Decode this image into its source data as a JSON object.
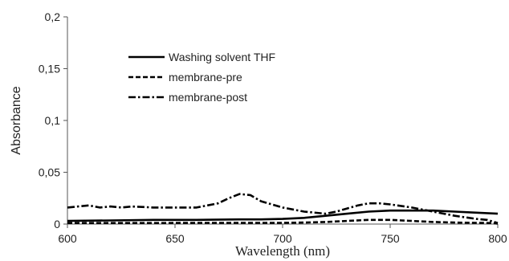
{
  "chart_data": {
    "type": "line",
    "title": "",
    "xlabel": "Wavelength  (nm)",
    "ylabel": "Absorbance",
    "xlim": [
      600,
      800
    ],
    "ylim": [
      0,
      0.2
    ],
    "xticks": [
      600,
      650,
      700,
      750,
      800
    ],
    "yticks": [
      0,
      0.05,
      0.1,
      0.15,
      0.2
    ],
    "xtick_labels": [
      "600",
      "650",
      "700",
      "750",
      "800"
    ],
    "ytick_labels": [
      "0",
      "0,05",
      "0,1",
      "0,15",
      "0,2"
    ],
    "grid": false,
    "legend_position": "upper-left",
    "series": [
      {
        "name": "Washing solvent THF",
        "style": "solid",
        "color": "#000000",
        "points": [
          [
            600,
            0.003
          ],
          [
            620,
            0.0035
          ],
          [
            640,
            0.004
          ],
          [
            660,
            0.004
          ],
          [
            680,
            0.0045
          ],
          [
            690,
            0.0045
          ],
          [
            700,
            0.005
          ],
          [
            710,
            0.006
          ],
          [
            720,
            0.008
          ],
          [
            730,
            0.01
          ],
          [
            740,
            0.012
          ],
          [
            750,
            0.013
          ],
          [
            760,
            0.013
          ],
          [
            770,
            0.013
          ],
          [
            780,
            0.012
          ],
          [
            790,
            0.011
          ],
          [
            800,
            0.01
          ]
        ]
      },
      {
        "name": "membrane-pre",
        "style": "dashed",
        "color": "#000000",
        "points": [
          [
            600,
            0.001
          ],
          [
            620,
            0.001
          ],
          [
            640,
            0.001
          ],
          [
            660,
            0.0012
          ],
          [
            680,
            0.0012
          ],
          [
            700,
            0.0012
          ],
          [
            710,
            0.0015
          ],
          [
            720,
            0.002
          ],
          [
            730,
            0.003
          ],
          [
            740,
            0.004
          ],
          [
            750,
            0.004
          ],
          [
            760,
            0.003
          ],
          [
            770,
            0.002
          ],
          [
            780,
            0.0015
          ],
          [
            790,
            0.0012
          ],
          [
            797,
            0.001
          ],
          [
            800,
            0.0005
          ]
        ]
      },
      {
        "name": "membrane-post",
        "style": "dashdot",
        "color": "#000000",
        "points": [
          [
            600,
            0.016
          ],
          [
            605,
            0.017
          ],
          [
            610,
            0.018
          ],
          [
            615,
            0.016
          ],
          [
            620,
            0.017
          ],
          [
            625,
            0.016
          ],
          [
            630,
            0.017
          ],
          [
            640,
            0.016
          ],
          [
            650,
            0.016
          ],
          [
            660,
            0.016
          ],
          [
            670,
            0.02
          ],
          [
            675,
            0.025
          ],
          [
            680,
            0.029
          ],
          [
            685,
            0.028
          ],
          [
            690,
            0.022
          ],
          [
            700,
            0.016
          ],
          [
            710,
            0.012
          ],
          [
            720,
            0.01
          ],
          [
            725,
            0.012
          ],
          [
            730,
            0.015
          ],
          [
            735,
            0.018
          ],
          [
            740,
            0.02
          ],
          [
            745,
            0.02
          ],
          [
            750,
            0.019
          ],
          [
            760,
            0.016
          ],
          [
            770,
            0.012
          ],
          [
            780,
            0.008
          ],
          [
            790,
            0.005
          ],
          [
            795,
            0.004
          ],
          [
            800,
            0.001
          ]
        ]
      }
    ]
  }
}
